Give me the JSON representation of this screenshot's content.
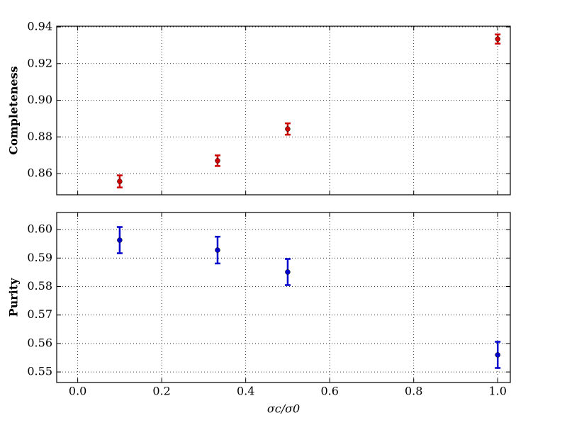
{
  "chart_data": {
    "type": "errorbar",
    "x": [
      0.1,
      0.333,
      0.5,
      1.0
    ],
    "xlim": [
      -0.05,
      1.03
    ],
    "xticks": [
      {
        "value": 0,
        "label": "0.0"
      },
      0.2,
      0.4,
      0.6,
      0.8,
      {
        "value": 1,
        "label": "1.0"
      }
    ],
    "xlabel": "σc/σ0",
    "grid": true,
    "panels": [
      {
        "ylabel": "Completeness",
        "color": "#cc0000",
        "values": [
          0.8557,
          0.867,
          0.8843,
          0.9334
        ],
        "errors": [
          0.0033,
          0.0029,
          0.0031,
          0.0025
        ],
        "ylim": [
          0.8484,
          0.9404
        ],
        "yticks": [
          0.86,
          0.88,
          {
            "value": 0.9,
            "label": "0.90"
          },
          0.92,
          0.94
        ]
      },
      {
        "ylabel": "Purity",
        "color": "#0000cc",
        "values": [
          0.5963,
          0.5928,
          0.5851,
          0.556
        ],
        "errors": [
          0.0046,
          0.0047,
          0.0046,
          0.0046
        ],
        "ylim": [
          0.5463,
          0.606
        ],
        "yticks": [
          0.55,
          0.56,
          0.57,
          0.58,
          0.59,
          {
            "value": 0.6,
            "label": "0.60"
          }
        ]
      }
    ]
  }
}
